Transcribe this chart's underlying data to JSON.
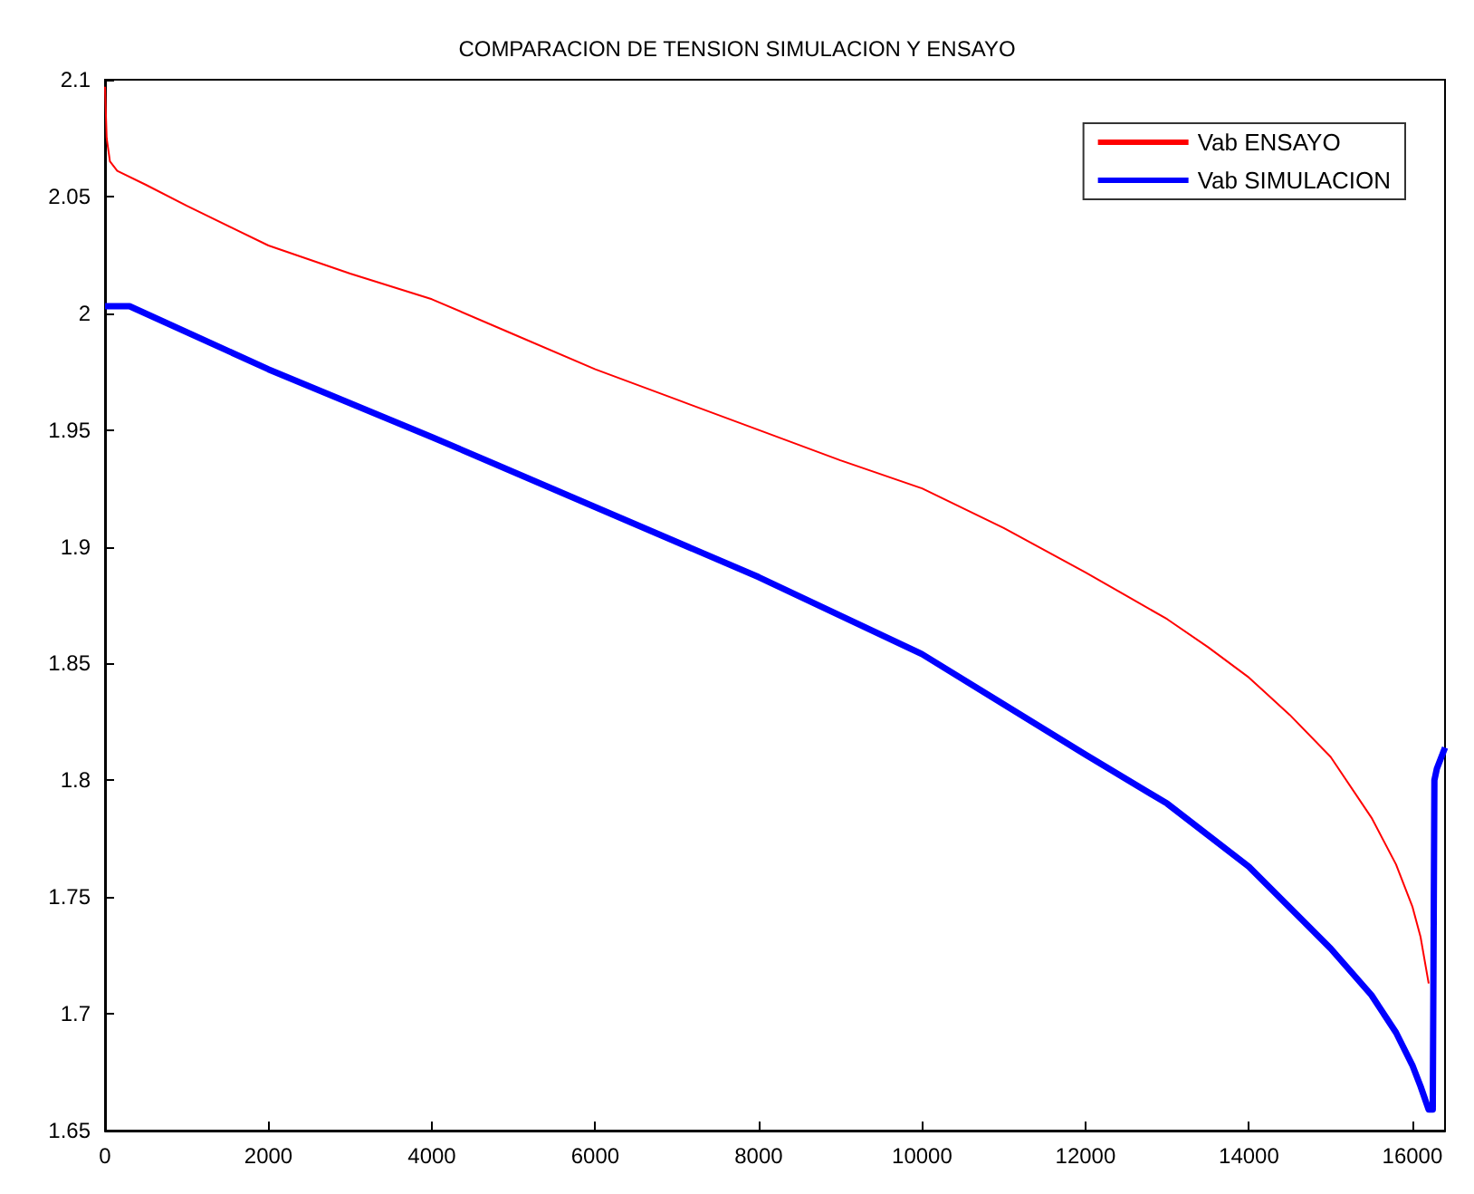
{
  "chart_data": {
    "type": "line",
    "title": "COMPARACION DE TENSION SIMULACION Y ENSAYO",
    "xlim": [
      0,
      16400
    ],
    "xticks": [
      0,
      2000,
      4000,
      6000,
      8000,
      10000,
      12000,
      14000,
      16000
    ],
    "ylim": [
      1.65,
      2.1
    ],
    "yticks": [
      1.65,
      1.7,
      1.75,
      1.8,
      1.85,
      1.9,
      1.95,
      2,
      2.05,
      2.1
    ],
    "grid": false,
    "legend": "top right",
    "series": [
      {
        "name": "Vab ENSAYO",
        "color": "#ff0000",
        "x": [
          0,
          20,
          60,
          150,
          500,
          1000,
          2000,
          3000,
          4000,
          5000,
          6000,
          7000,
          8000,
          9000,
          10000,
          11000,
          12000,
          12500,
          13000,
          13500,
          14000,
          14500,
          15000,
          15500,
          15800,
          16000,
          16100,
          16200
        ],
        "values": [
          2.097,
          2.075,
          2.065,
          2.061,
          2.055,
          2.046,
          2.029,
          2.017,
          2.006,
          1.991,
          1.976,
          1.963,
          1.95,
          1.937,
          1.925,
          1.908,
          1.889,
          1.879,
          1.869,
          1.857,
          1.844,
          1.828,
          1.81,
          1.784,
          1.764,
          1.746,
          1.733,
          1.713
        ]
      },
      {
        "name": "Vab SIMULACION",
        "color": "#0000ff",
        "x": [
          0,
          300,
          2000,
          4000,
          6000,
          8000,
          10000,
          12000,
          13000,
          14000,
          15000,
          15500,
          15800,
          16000,
          16100,
          16200,
          16250,
          16270,
          16300,
          16400
        ],
        "values": [
          2.003,
          2.003,
          1.976,
          1.947,
          1.917,
          1.887,
          1.854,
          1.811,
          1.79,
          1.763,
          1.728,
          1.708,
          1.692,
          1.678,
          1.669,
          1.659,
          1.659,
          1.8,
          1.805,
          1.814
        ]
      }
    ]
  }
}
